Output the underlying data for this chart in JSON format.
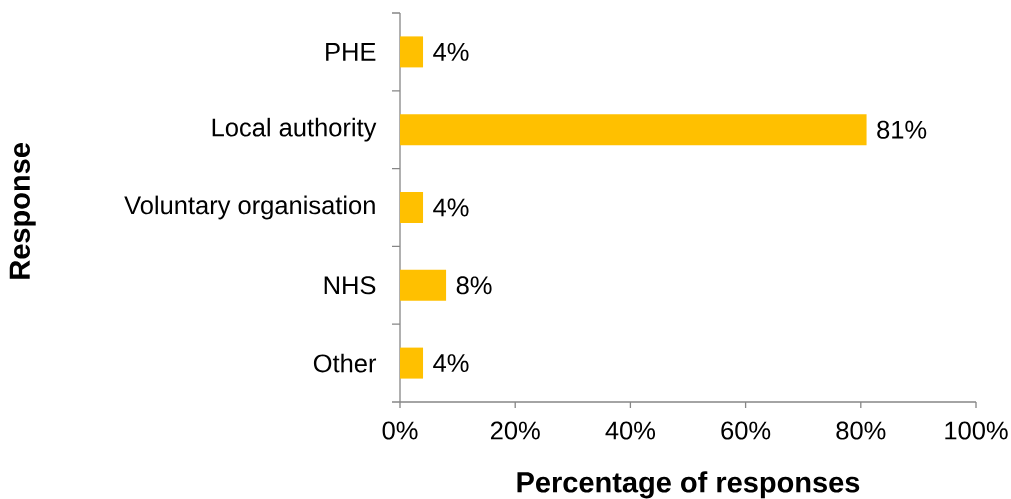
{
  "chart_data": {
    "type": "bar",
    "orientation": "horizontal",
    "xlabel": "Percentage of responses",
    "ylabel": "Response",
    "categories": [
      "PHE",
      "Local authority",
      "Voluntary organisation",
      "NHS",
      "Other"
    ],
    "values": [
      4,
      81,
      4,
      8,
      4
    ],
    "value_labels": [
      "4%",
      "81%",
      "4%",
      "8%",
      "4%"
    ],
    "color": "#ffc000",
    "xlim": [
      0,
      100
    ],
    "xticks": [
      {
        "value": 0,
        "label": "0%"
      },
      {
        "value": 20,
        "label": "20%"
      },
      {
        "value": 40,
        "label": "40%"
      },
      {
        "value": 60,
        "label": "60%"
      },
      {
        "value": 80,
        "label": "80%"
      },
      {
        "value": 100,
        "label": "100%"
      }
    ]
  }
}
